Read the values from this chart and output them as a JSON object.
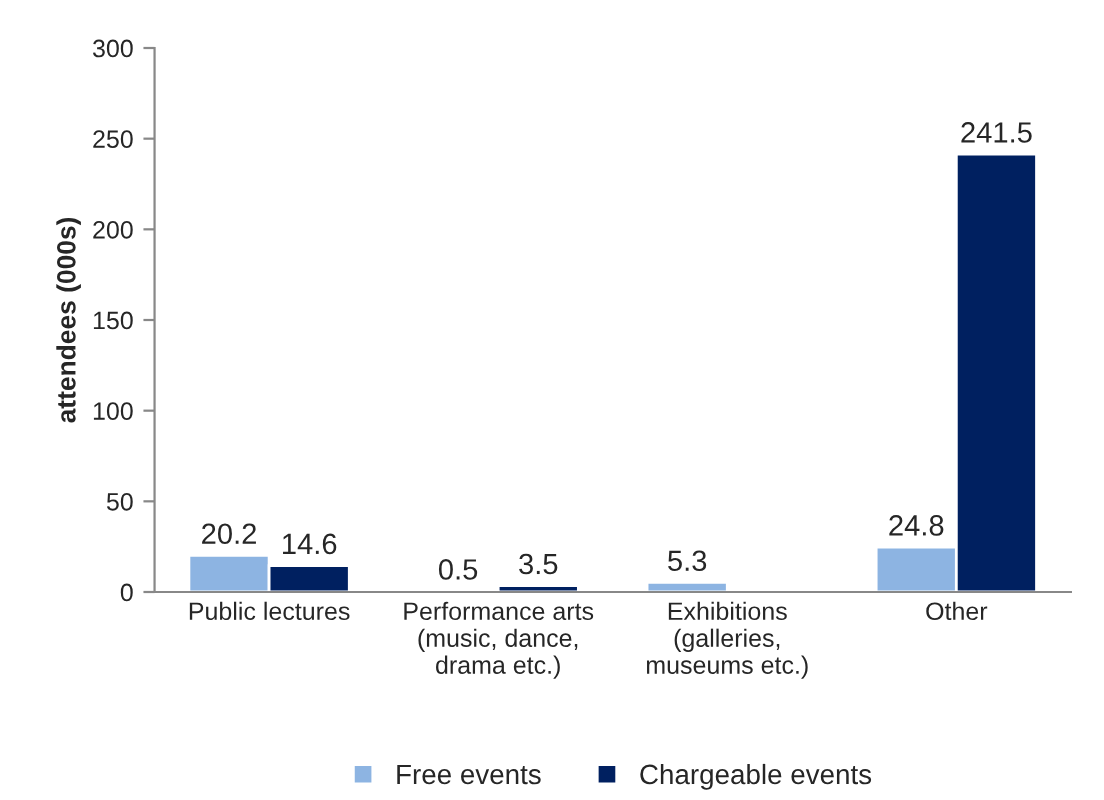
{
  "chart_data": {
    "type": "bar",
    "ylabel": "attendees (000s)",
    "categories": [
      "Public lectures",
      "Performance arts\n(music, dance,\ndrama etc.)",
      "Exhibitions\n(galleries,\nmuseums etc.)",
      "Other"
    ],
    "series": [
      {
        "name": "Free events",
        "color": "#8db4e2",
        "values": [
          20.2,
          0.5,
          5.3,
          24.8
        ]
      },
      {
        "name": "Chargeable events",
        "color": "#002060",
        "values": [
          14.6,
          3.5,
          null,
          241.5
        ]
      }
    ],
    "ylim": [
      0,
      300
    ],
    "yticks": [
      0,
      50,
      100,
      150,
      200,
      250,
      300
    ],
    "data_labels": true,
    "grid": false,
    "legend": "bottom"
  }
}
